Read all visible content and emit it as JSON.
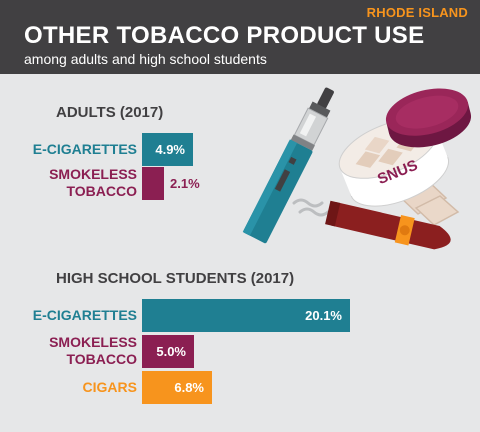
{
  "header": {
    "state": "RHODE ISLAND",
    "title": "OTHER TOBACCO PRODUCT USE",
    "subtitle": "among adults and high school students"
  },
  "illustration": {
    "tin_label": "SNUS"
  },
  "colors": {
    "teal": "#1f7f92",
    "maroon": "#8b1f52",
    "orange": "#f7941d",
    "header_bg": "#414042",
    "background": "#e6e7e8"
  },
  "chart_data": [
    {
      "type": "bar",
      "title": "ADULTS (2017)",
      "categories": [
        "E-CIGARETTES",
        "SMOKELESS TOBACCO"
      ],
      "values": [
        4.9,
        2.1
      ],
      "value_labels": [
        "4.9%",
        "2.1%"
      ],
      "colors": [
        "#1f7f92",
        "#8b1f52"
      ],
      "xlim": [
        0,
        20.1
      ]
    },
    {
      "type": "bar",
      "title": "HIGH SCHOOL STUDENTS (2017)",
      "categories": [
        "E-CIGARETTES",
        "SMOKELESS TOBACCO",
        "CIGARS"
      ],
      "values": [
        20.1,
        5.0,
        6.8
      ],
      "value_labels": [
        "20.1%",
        "5.0%",
        "6.8%"
      ],
      "colors": [
        "#1f7f92",
        "#8b1f52",
        "#f7941d"
      ],
      "xlim": [
        0,
        20.1
      ]
    }
  ]
}
